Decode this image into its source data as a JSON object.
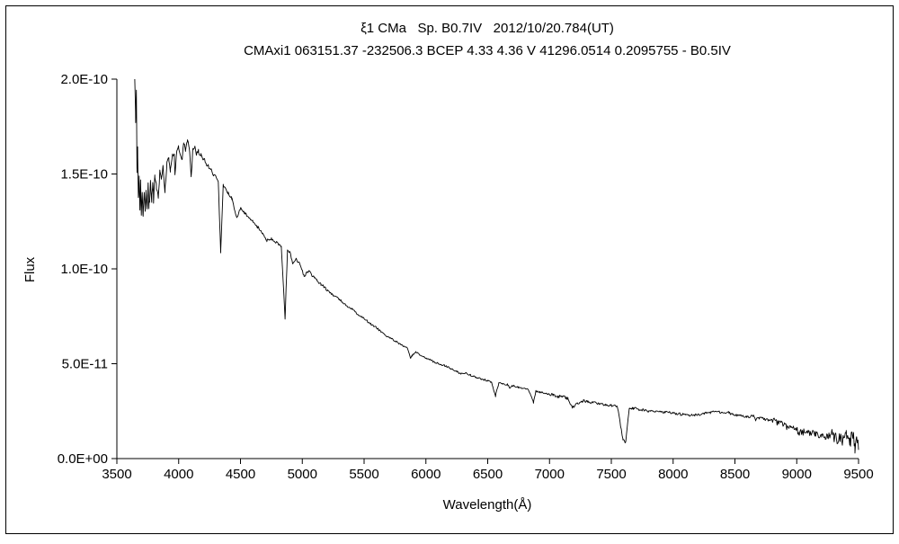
{
  "colors": {
    "background": "#ffffff",
    "line": "#000000",
    "text": "#000000",
    "frame": "#000000"
  },
  "chart_data": {
    "type": "line",
    "title": "ξ1 CMa   Sp. B0.7IV   2012/10/20.784(UT)",
    "subtitle": "CMAxi1 063151.37 -232506.3 BCEP 4.33 4.36 V 41296.0514 0.2095755 - B0.5IV",
    "xlabel": "Wavelength(Å)",
    "ylabel": "Flux",
    "grid": false,
    "legend": false,
    "xlim": [
      3500,
      9500
    ],
    "ylim_flux": [
      0,
      2e-10
    ],
    "ylim_1e10": [
      0,
      2.0
    ],
    "xticks": [
      3500,
      4000,
      4500,
      5000,
      5500,
      6000,
      6500,
      7000,
      7500,
      8000,
      8500,
      9000,
      9500
    ],
    "ytick_values_1e10": [
      0,
      0.5,
      1.0,
      1.5,
      2.0
    ],
    "ytick_labels": [
      "0.0E+00",
      "5.0E-11",
      "1.0E-10",
      "1.5E-10",
      "2.0E-10"
    ],
    "series": [
      {
        "name": "spectrum",
        "units": "wavelength Å, flux in 1e-10",
        "points": [
          [
            3645,
            2.1
          ],
          [
            3652,
            1.78
          ],
          [
            3658,
            1.95
          ],
          [
            3663,
            1.52
          ],
          [
            3668,
            1.65
          ],
          [
            3674,
            1.38
          ],
          [
            3680,
            1.5
          ],
          [
            3686,
            1.3
          ],
          [
            3692,
            1.44
          ],
          [
            3698,
            1.28
          ],
          [
            3705,
            1.4
          ],
          [
            3712,
            1.27
          ],
          [
            3722,
            1.41
          ],
          [
            3728,
            1.3
          ],
          [
            3736,
            1.43
          ],
          [
            3745,
            1.31
          ],
          [
            3752,
            1.44
          ],
          [
            3760,
            1.33
          ],
          [
            3772,
            1.45
          ],
          [
            3782,
            1.35
          ],
          [
            3790,
            1.47
          ],
          [
            3797,
            1.36
          ],
          [
            3808,
            1.49
          ],
          [
            3820,
            1.44
          ],
          [
            3835,
            1.37
          ],
          [
            3848,
            1.52
          ],
          [
            3860,
            1.48
          ],
          [
            3874,
            1.54
          ],
          [
            3889,
            1.41
          ],
          [
            3905,
            1.56
          ],
          [
            3920,
            1.58
          ],
          [
            3933,
            1.52
          ],
          [
            3950,
            1.6
          ],
          [
            3964,
            1.61
          ],
          [
            3970,
            1.5
          ],
          [
            3985,
            1.62
          ],
          [
            4000,
            1.64
          ],
          [
            4009,
            1.62
          ],
          [
            4026,
            1.57
          ],
          [
            4040,
            1.66
          ],
          [
            4055,
            1.63
          ],
          [
            4070,
            1.67
          ],
          [
            4085,
            1.65
          ],
          [
            4101,
            1.49
          ],
          [
            4115,
            1.63
          ],
          [
            4130,
            1.64
          ],
          [
            4144,
            1.61
          ],
          [
            4160,
            1.62
          ],
          [
            4180,
            1.6
          ],
          [
            4200,
            1.58
          ],
          [
            4230,
            1.55
          ],
          [
            4260,
            1.52
          ],
          [
            4290,
            1.49
          ],
          [
            4320,
            1.46
          ],
          [
            4340,
            1.09
          ],
          [
            4360,
            1.44
          ],
          [
            4380,
            1.42
          ],
          [
            4400,
            1.4
          ],
          [
            4430,
            1.37
          ],
          [
            4471,
            1.27
          ],
          [
            4500,
            1.32
          ],
          [
            4540,
            1.29
          ],
          [
            4570,
            1.27
          ],
          [
            4600,
            1.25
          ],
          [
            4640,
            1.22
          ],
          [
            4680,
            1.19
          ],
          [
            4713,
            1.15
          ],
          [
            4750,
            1.16
          ],
          [
            4790,
            1.14
          ],
          [
            4830,
            1.12
          ],
          [
            4861,
            0.74
          ],
          [
            4880,
            1.1
          ],
          [
            4900,
            1.09
          ],
          [
            4922,
            1.03
          ],
          [
            4950,
            1.05
          ],
          [
            4980,
            1.03
          ],
          [
            5015,
            0.96
          ],
          [
            5050,
            0.99
          ],
          [
            5100,
            0.95
          ],
          [
            5150,
            0.92
          ],
          [
            5200,
            0.89
          ],
          [
            5250,
            0.86
          ],
          [
            5300,
            0.84
          ],
          [
            5350,
            0.81
          ],
          [
            5400,
            0.79
          ],
          [
            5450,
            0.76
          ],
          [
            5500,
            0.74
          ],
          [
            5550,
            0.71
          ],
          [
            5600,
            0.69
          ],
          [
            5650,
            0.66
          ],
          [
            5700,
            0.64
          ],
          [
            5750,
            0.62
          ],
          [
            5800,
            0.6
          ],
          [
            5850,
            0.58
          ],
          [
            5876,
            0.53
          ],
          [
            5890,
            0.545
          ],
          [
            5920,
            0.56
          ],
          [
            5950,
            0.545
          ],
          [
            6000,
            0.53
          ],
          [
            6050,
            0.515
          ],
          [
            6100,
            0.5
          ],
          [
            6150,
            0.49
          ],
          [
            6200,
            0.475
          ],
          [
            6250,
            0.46
          ],
          [
            6283,
            0.445
          ],
          [
            6320,
            0.45
          ],
          [
            6360,
            0.44
          ],
          [
            6400,
            0.43
          ],
          [
            6450,
            0.42
          ],
          [
            6500,
            0.41
          ],
          [
            6530,
            0.405
          ],
          [
            6563,
            0.33
          ],
          [
            6590,
            0.4
          ],
          [
            6620,
            0.395
          ],
          [
            6660,
            0.39
          ],
          [
            6678,
            0.375
          ],
          [
            6700,
            0.385
          ],
          [
            6750,
            0.375
          ],
          [
            6800,
            0.37
          ],
          [
            6830,
            0.365
          ],
          [
            6870,
            0.295
          ],
          [
            6890,
            0.355
          ],
          [
            6920,
            0.35
          ],
          [
            6960,
            0.345
          ],
          [
            7000,
            0.34
          ],
          [
            7030,
            0.335
          ],
          [
            7065,
            0.325
          ],
          [
            7100,
            0.33
          ],
          [
            7150,
            0.315
          ],
          [
            7186,
            0.27
          ],
          [
            7230,
            0.29
          ],
          [
            7270,
            0.305
          ],
          [
            7310,
            0.3
          ],
          [
            7350,
            0.295
          ],
          [
            7400,
            0.29
          ],
          [
            7450,
            0.285
          ],
          [
            7500,
            0.28
          ],
          [
            7550,
            0.275
          ],
          [
            7594,
            0.1
          ],
          [
            7615,
            0.085
          ],
          [
            7645,
            0.26
          ],
          [
            7680,
            0.265
          ],
          [
            7720,
            0.26
          ],
          [
            7760,
            0.255
          ],
          [
            7800,
            0.25
          ],
          [
            7850,
            0.248
          ],
          [
            7900,
            0.245
          ],
          [
            7950,
            0.242
          ],
          [
            8000,
            0.24
          ],
          [
            8050,
            0.235
          ],
          [
            8100,
            0.23
          ],
          [
            8150,
            0.228
          ],
          [
            8200,
            0.232
          ],
          [
            8250,
            0.238
          ],
          [
            8300,
            0.243
          ],
          [
            8350,
            0.246
          ],
          [
            8400,
            0.244
          ],
          [
            8450,
            0.242
          ],
          [
            8502,
            0.228
          ],
          [
            8545,
            0.232
          ],
          [
            8598,
            0.22
          ],
          [
            8650,
            0.224
          ],
          [
            8665,
            0.205
          ],
          [
            8700,
            0.215
          ],
          [
            8750,
            0.205
          ],
          [
            8800,
            0.2
          ],
          [
            8850,
            0.19
          ],
          [
            8900,
            0.175
          ],
          [
            8950,
            0.16
          ],
          [
            9000,
            0.15
          ],
          [
            9015,
            0.135
          ],
          [
            9050,
            0.14
          ],
          [
            9100,
            0.135
          ],
          [
            9150,
            0.128
          ],
          [
            9200,
            0.124
          ],
          [
            9229,
            0.11
          ],
          [
            9250,
            0.12
          ],
          [
            9300,
            0.115
          ],
          [
            9350,
            0.1
          ],
          [
            9400,
            0.112
          ],
          [
            9430,
            0.09
          ],
          [
            9455,
            0.125
          ],
          [
            9470,
            0.06
          ],
          [
            9485,
            0.13
          ],
          [
            9500,
            0.08
          ]
        ]
      }
    ],
    "noise_regions": [
      {
        "range": [
          3645,
          3820
        ],
        "amplitude_1e10": 0.03
      },
      {
        "range": [
          3820,
          4300
        ],
        "amplitude_1e10": 0.012
      },
      {
        "range": [
          4300,
          5200
        ],
        "amplitude_1e10": 0.007
      },
      {
        "range": [
          5200,
          7000
        ],
        "amplitude_1e10": 0.005
      },
      {
        "range": [
          7000,
          8800
        ],
        "amplitude_1e10": 0.007
      },
      {
        "range": [
          8800,
          9280
        ],
        "amplitude_1e10": 0.018
      },
      {
        "range": [
          9280,
          9501
        ],
        "amplitude_1e10": 0.038
      }
    ]
  }
}
